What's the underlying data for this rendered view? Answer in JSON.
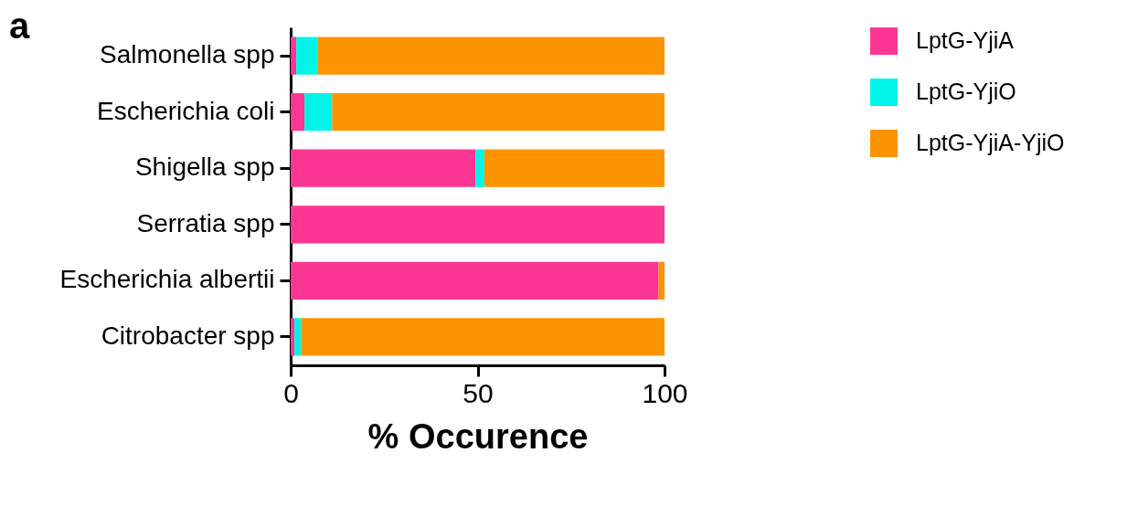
{
  "chart_data": {
    "type": "bar",
    "orientation": "horizontal",
    "stacked": true,
    "xlabel": "% Occurence",
    "annotations": [
      "a"
    ],
    "categories": [
      "Salmonella spp",
      "Escherichia coli",
      "Shigella spp",
      "Serratia spp",
      "Escherichia albertii",
      "Citrobacter spp"
    ],
    "series": [
      {
        "name": "LptG-YjiA",
        "color": "#fc3793",
        "values": [
          1.5,
          3.7,
          49.5,
          100,
          98.4,
          1
        ]
      },
      {
        "name": "LptG-YjiO",
        "color": "#00f4e8",
        "values": [
          5.8,
          7.4,
          2.3,
          null,
          null,
          1.8
        ]
      },
      {
        "name": "LptG-YjiA-YjiO",
        "color": "#fe9300",
        "values": [
          92.7,
          88.9,
          48.2,
          null,
          1.6,
          97.2
        ]
      }
    ],
    "xlim": [
      0,
      100
    ],
    "xticks": [
      0,
      50,
      100
    ],
    "grid": false,
    "legend": "top right"
  }
}
